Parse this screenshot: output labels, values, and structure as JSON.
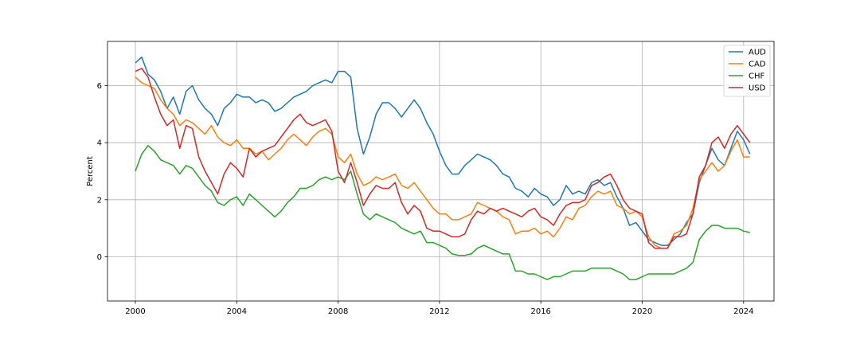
{
  "chart_data": {
    "type": "line",
    "title": "",
    "xlabel": "",
    "ylabel": "Percent",
    "xlim": [
      1998.9,
      2025.2
    ],
    "ylim": [
      -1.55,
      7.55
    ],
    "x_ticks": [
      2000,
      2004,
      2008,
      2012,
      2016,
      2020,
      2024
    ],
    "x_tick_labels": [
      "2000",
      "2004",
      "2008",
      "2012",
      "2016",
      "2020",
      "2024"
    ],
    "y_ticks": [
      0,
      2,
      4,
      6
    ],
    "y_tick_labels": [
      "0",
      "2",
      "4",
      "6"
    ],
    "grid": true,
    "legend_position": "top-right",
    "series": [
      {
        "name": "AUD",
        "color": "#1f77b4",
        "x": [
          2000.0,
          2000.25,
          2000.5,
          2000.75,
          2001.0,
          2001.25,
          2001.5,
          2001.75,
          2002.0,
          2002.25,
          2002.5,
          2002.75,
          2003.0,
          2003.25,
          2003.5,
          2003.75,
          2004.0,
          2004.25,
          2004.5,
          2004.75,
          2005.0,
          2005.25,
          2005.5,
          2005.75,
          2006.0,
          2006.25,
          2006.5,
          2006.75,
          2007.0,
          2007.25,
          2007.5,
          2007.75,
          2008.0,
          2008.25,
          2008.5,
          2008.75,
          2009.0,
          2009.25,
          2009.5,
          2009.75,
          2010.0,
          2010.25,
          2010.5,
          2010.75,
          2011.0,
          2011.25,
          2011.5,
          2011.75,
          2012.0,
          2012.25,
          2012.5,
          2012.75,
          2013.0,
          2013.25,
          2013.5,
          2013.75,
          2014.0,
          2014.25,
          2014.5,
          2014.75,
          2015.0,
          2015.25,
          2015.5,
          2015.75,
          2016.0,
          2016.25,
          2016.5,
          2016.75,
          2017.0,
          2017.25,
          2017.5,
          2017.75,
          2018.0,
          2018.25,
          2018.5,
          2018.75,
          2019.0,
          2019.25,
          2019.5,
          2019.75,
          2020.0,
          2020.25,
          2020.5,
          2020.75,
          2021.0,
          2021.25,
          2021.5,
          2021.75,
          2022.0,
          2022.25,
          2022.5,
          2022.75,
          2023.0,
          2023.25,
          2023.5,
          2023.75,
          2024.0,
          2024.25
        ],
        "y": [
          6.8,
          7.0,
          6.4,
          6.2,
          5.8,
          5.2,
          5.6,
          5.0,
          5.8,
          6.0,
          5.5,
          5.2,
          5.0,
          4.6,
          5.2,
          5.4,
          5.7,
          5.6,
          5.6,
          5.4,
          5.5,
          5.4,
          5.1,
          5.2,
          5.4,
          5.6,
          5.7,
          5.8,
          6.0,
          6.1,
          6.2,
          6.1,
          6.5,
          6.5,
          6.3,
          4.5,
          3.6,
          4.2,
          5.0,
          5.4,
          5.4,
          5.2,
          4.9,
          5.2,
          5.5,
          5.2,
          4.7,
          4.3,
          3.7,
          3.2,
          2.9,
          2.9,
          3.2,
          3.4,
          3.6,
          3.5,
          3.4,
          3.2,
          2.9,
          2.8,
          2.4,
          2.3,
          2.1,
          2.4,
          2.2,
          2.1,
          1.8,
          2.0,
          2.5,
          2.2,
          2.3,
          2.2,
          2.6,
          2.7,
          2.5,
          2.6,
          2.1,
          1.7,
          1.1,
          1.2,
          0.9,
          0.6,
          0.5,
          0.4,
          0.4,
          0.6,
          0.8,
          1.2,
          1.5,
          2.6,
          3.2,
          3.8,
          3.4,
          3.2,
          3.8,
          4.4,
          4.1,
          3.6
        ]
      },
      {
        "name": "CAD",
        "color": "#ff7f0e",
        "x": [
          2000.0,
          2000.25,
          2000.5,
          2000.75,
          2001.0,
          2001.25,
          2001.5,
          2001.75,
          2002.0,
          2002.25,
          2002.5,
          2002.75,
          2003.0,
          2003.25,
          2003.5,
          2003.75,
          2004.0,
          2004.25,
          2004.5,
          2004.75,
          2005.0,
          2005.25,
          2005.5,
          2005.75,
          2006.0,
          2006.25,
          2006.5,
          2006.75,
          2007.0,
          2007.25,
          2007.5,
          2007.75,
          2008.0,
          2008.25,
          2008.5,
          2008.75,
          2009.0,
          2009.25,
          2009.5,
          2009.75,
          2010.0,
          2010.25,
          2010.5,
          2010.75,
          2011.0,
          2011.25,
          2011.5,
          2011.75,
          2012.0,
          2012.25,
          2012.5,
          2012.75,
          2013.0,
          2013.25,
          2013.5,
          2013.75,
          2014.0,
          2014.25,
          2014.5,
          2014.75,
          2015.0,
          2015.25,
          2015.5,
          2015.75,
          2016.0,
          2016.25,
          2016.5,
          2016.75,
          2017.0,
          2017.25,
          2017.5,
          2017.75,
          2018.0,
          2018.25,
          2018.5,
          2018.75,
          2019.0,
          2019.25,
          2019.5,
          2019.75,
          2020.0,
          2020.25,
          2020.5,
          2020.75,
          2021.0,
          2021.25,
          2021.5,
          2021.75,
          2022.0,
          2022.25,
          2022.5,
          2022.75,
          2023.0,
          2023.25,
          2023.5,
          2023.75,
          2024.0,
          2024.25
        ],
        "y": [
          6.3,
          6.1,
          6.0,
          5.9,
          5.5,
          5.2,
          5.0,
          4.6,
          4.8,
          4.7,
          4.5,
          4.3,
          4.6,
          4.2,
          4.0,
          3.9,
          4.1,
          3.8,
          3.8,
          3.6,
          3.7,
          3.4,
          3.6,
          3.8,
          4.1,
          4.3,
          4.1,
          3.9,
          4.2,
          4.4,
          4.5,
          4.3,
          3.5,
          3.3,
          3.6,
          2.9,
          2.5,
          2.6,
          2.8,
          2.7,
          2.8,
          2.9,
          2.5,
          2.4,
          2.6,
          2.3,
          2.0,
          1.7,
          1.5,
          1.5,
          1.3,
          1.3,
          1.4,
          1.5,
          1.9,
          1.8,
          1.7,
          1.6,
          1.4,
          1.3,
          0.8,
          0.9,
          0.9,
          1.0,
          0.8,
          0.9,
          0.7,
          1.0,
          1.4,
          1.3,
          1.7,
          1.8,
          2.1,
          2.3,
          2.2,
          2.3,
          1.8,
          1.7,
          1.5,
          1.6,
          1.4,
          0.7,
          0.4,
          0.3,
          0.3,
          0.8,
          0.9,
          1.1,
          1.7,
          2.7,
          3.0,
          3.3,
          3.0,
          3.2,
          3.7,
          4.1,
          3.5,
          3.5
        ]
      },
      {
        "name": "CHF",
        "color": "#2ca02c",
        "x": [
          2000.0,
          2000.25,
          2000.5,
          2000.75,
          2001.0,
          2001.25,
          2001.5,
          2001.75,
          2002.0,
          2002.25,
          2002.5,
          2002.75,
          2003.0,
          2003.25,
          2003.5,
          2003.75,
          2004.0,
          2004.25,
          2004.5,
          2004.75,
          2005.0,
          2005.25,
          2005.5,
          2005.75,
          2006.0,
          2006.25,
          2006.5,
          2006.75,
          2007.0,
          2007.25,
          2007.5,
          2007.75,
          2008.0,
          2008.25,
          2008.5,
          2008.75,
          2009.0,
          2009.25,
          2009.5,
          2009.75,
          2010.0,
          2010.25,
          2010.5,
          2010.75,
          2011.0,
          2011.25,
          2011.5,
          2011.75,
          2012.0,
          2012.25,
          2012.5,
          2012.75,
          2013.0,
          2013.25,
          2013.5,
          2013.75,
          2014.0,
          2014.25,
          2014.5,
          2014.75,
          2015.0,
          2015.25,
          2015.5,
          2015.75,
          2016.0,
          2016.25,
          2016.5,
          2016.75,
          2017.0,
          2017.25,
          2017.5,
          2017.75,
          2018.0,
          2018.25,
          2018.5,
          2018.75,
          2019.0,
          2019.25,
          2019.5,
          2019.75,
          2020.0,
          2020.25,
          2020.5,
          2020.75,
          2021.0,
          2021.25,
          2021.5,
          2021.75,
          2022.0,
          2022.25,
          2022.5,
          2022.75,
          2023.0,
          2023.25,
          2023.5,
          2023.75,
          2024.0,
          2024.25
        ],
        "y": [
          3.0,
          3.6,
          3.9,
          3.7,
          3.4,
          3.3,
          3.2,
          2.9,
          3.2,
          3.1,
          2.8,
          2.5,
          2.3,
          1.9,
          1.8,
          2.0,
          2.1,
          1.8,
          2.2,
          2.0,
          1.8,
          1.6,
          1.4,
          1.6,
          1.9,
          2.1,
          2.4,
          2.4,
          2.5,
          2.7,
          2.8,
          2.7,
          2.8,
          2.7,
          3.0,
          2.2,
          1.5,
          1.3,
          1.5,
          1.4,
          1.3,
          1.2,
          1.0,
          0.9,
          0.8,
          0.9,
          0.5,
          0.5,
          0.4,
          0.3,
          0.1,
          0.05,
          0.05,
          0.1,
          0.3,
          0.4,
          0.3,
          0.2,
          0.1,
          0.1,
          -0.5,
          -0.5,
          -0.6,
          -0.6,
          -0.7,
          -0.8,
          -0.7,
          -0.7,
          -0.6,
          -0.5,
          -0.5,
          -0.5,
          -0.4,
          -0.4,
          -0.4,
          -0.4,
          -0.5,
          -0.6,
          -0.8,
          -0.8,
          -0.7,
          -0.6,
          -0.6,
          -0.6,
          -0.6,
          -0.6,
          -0.5,
          -0.4,
          -0.2,
          0.6,
          0.9,
          1.1,
          1.1,
          1.0,
          1.0,
          1.0,
          0.9,
          0.85
        ]
      },
      {
        "name": "USD",
        "color": "#d62728",
        "x": [
          2000.0,
          2000.25,
          2000.5,
          2000.75,
          2001.0,
          2001.25,
          2001.5,
          2001.75,
          2002.0,
          2002.25,
          2002.5,
          2002.75,
          2003.0,
          2003.25,
          2003.5,
          2003.75,
          2004.0,
          2004.25,
          2004.5,
          2004.75,
          2005.0,
          2005.25,
          2005.5,
          2005.75,
          2006.0,
          2006.25,
          2006.5,
          2006.75,
          2007.0,
          2007.25,
          2007.5,
          2007.75,
          2008.0,
          2008.25,
          2008.5,
          2008.75,
          2009.0,
          2009.25,
          2009.5,
          2009.75,
          2010.0,
          2010.25,
          2010.5,
          2010.75,
          2011.0,
          2011.25,
          2011.5,
          2011.75,
          2012.0,
          2012.25,
          2012.5,
          2012.75,
          2013.0,
          2013.25,
          2013.5,
          2013.75,
          2014.0,
          2014.25,
          2014.5,
          2014.75,
          2015.0,
          2015.25,
          2015.5,
          2015.75,
          2016.0,
          2016.25,
          2016.5,
          2016.75,
          2017.0,
          2017.25,
          2017.5,
          2017.75,
          2018.0,
          2018.25,
          2018.5,
          2018.75,
          2019.0,
          2019.25,
          2019.5,
          2019.75,
          2020.0,
          2020.25,
          2020.5,
          2020.75,
          2021.0,
          2021.25,
          2021.5,
          2021.75,
          2022.0,
          2022.25,
          2022.5,
          2022.75,
          2023.0,
          2023.25,
          2023.5,
          2023.75,
          2024.0,
          2024.25
        ],
        "y": [
          6.5,
          6.6,
          6.3,
          5.6,
          5.0,
          4.6,
          4.8,
          3.8,
          4.6,
          4.5,
          3.5,
          3.0,
          2.6,
          2.2,
          2.9,
          3.3,
          3.1,
          2.8,
          3.8,
          3.5,
          3.7,
          3.8,
          3.9,
          4.2,
          4.5,
          4.8,
          5.0,
          4.7,
          4.6,
          4.7,
          4.8,
          4.4,
          3.0,
          2.6,
          3.3,
          2.6,
          1.8,
          2.2,
          2.5,
          2.4,
          2.4,
          2.6,
          1.9,
          1.5,
          1.8,
          1.6,
          1.0,
          0.9,
          0.9,
          0.8,
          0.7,
          0.7,
          0.8,
          1.3,
          1.6,
          1.5,
          1.7,
          1.6,
          1.7,
          1.6,
          1.5,
          1.4,
          1.6,
          1.7,
          1.4,
          1.3,
          1.1,
          1.5,
          1.8,
          1.9,
          1.9,
          2.0,
          2.5,
          2.6,
          2.8,
          2.9,
          2.5,
          2.0,
          1.7,
          1.6,
          1.5,
          0.5,
          0.3,
          0.3,
          0.3,
          0.7,
          0.7,
          0.8,
          1.5,
          2.8,
          3.2,
          4.0,
          4.2,
          3.8,
          4.3,
          4.6,
          4.3,
          4.0
        ]
      }
    ]
  }
}
